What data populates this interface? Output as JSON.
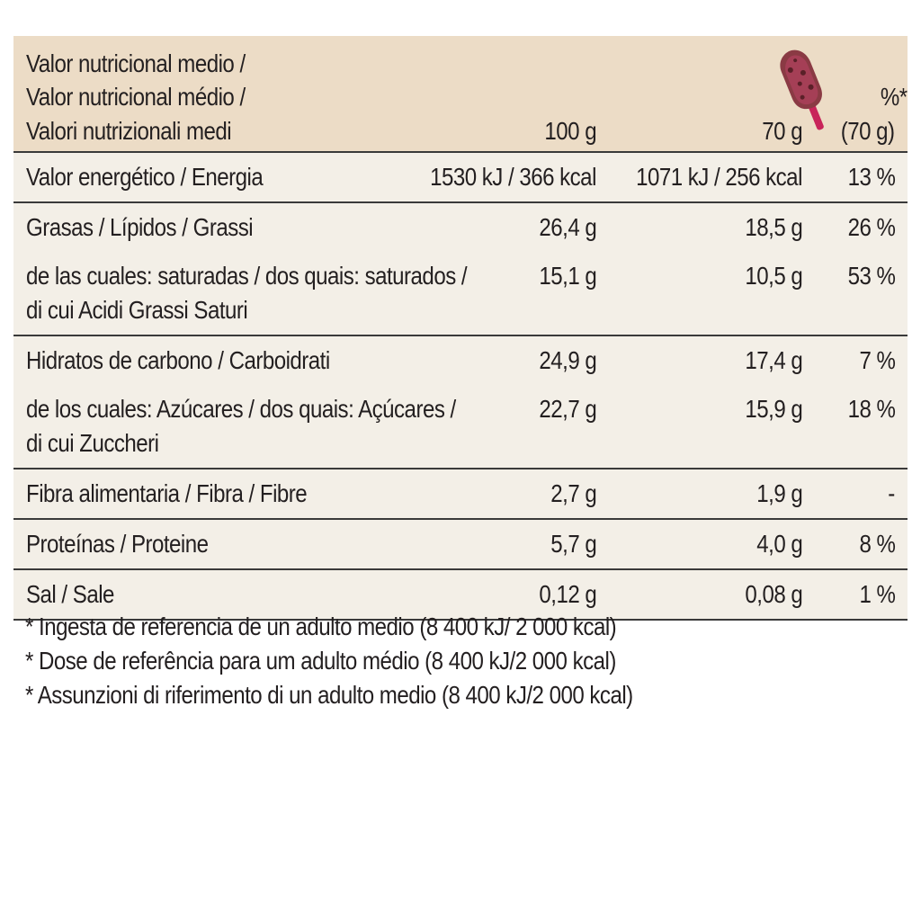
{
  "table": {
    "header": {
      "title_line1": "Valor nutricional medio /",
      "title_line2": "Valor nutricional médio /",
      "title_line3": "Valori nutrizionali medi",
      "col_100": "100 g",
      "col_70": "70 g",
      "col_pct_line1": "%*",
      "col_pct_line2": "(70 g)",
      "portion_icon": "ice-cream-bar-icon"
    },
    "rows": [
      {
        "name": [
          "Valor energético / Energia"
        ],
        "v100": "1530 kJ / 366 kcal",
        "v70": "1071 kJ / 256 kcal",
        "pct": "13 %"
      },
      {
        "name": [
          "Grasas / Lípidos / Grassi"
        ],
        "v100": "26,4 g",
        "v70": "18,5 g",
        "pct": "26 %"
      },
      {
        "name": [
          "de las cuales: saturadas / dos quais: saturados /",
          "di cui Acidi Grassi Saturi"
        ],
        "v100": "15,1 g",
        "v70": "10,5 g",
        "pct": "53 %"
      },
      {
        "name": [
          "Hidratos de carbono / Carboidrati"
        ],
        "v100": "24,9 g",
        "v70": "17,4 g",
        "pct": "7 %"
      },
      {
        "name": [
          " de los cuales: Azúcares / dos quais: Açúcares /",
          "di cui Zuccheri"
        ],
        "v100": "22,7 g",
        "v70": "15,9 g",
        "pct": "18 %"
      },
      {
        "name": [
          "Fibra alimentaria / Fibra / Fibre"
        ],
        "v100": "2,7 g",
        "v70": "1,9 g",
        "pct": "-"
      },
      {
        "name": [
          "Proteínas / Proteine"
        ],
        "v100": "5,7 g",
        "v70": "4,0 g",
        "pct": "8 %"
      },
      {
        "name": [
          "Sal / Sale"
        ],
        "v100": "0,12 g",
        "v70": "0,08 g",
        "pct": "1 %"
      }
    ]
  },
  "footnotes": [
    "* Ingesta de referencia de un adulto medio (8 400 kJ/ 2 000 kcal)",
    "* Dose de referência para um adulto médio (8 400 kJ/2 000 kcal)",
    "* Assunzioni di riferimento di un adulto medio (8 400 kJ/2 000 kcal)"
  ],
  "colors": {
    "header_bg": "#ecdcc6",
    "body_bg": "#f3efe7",
    "rule": "#3a3a3a",
    "text": "#231f20",
    "icon_stick": "#c8245a",
    "icon_bar": "#8a3a44"
  }
}
